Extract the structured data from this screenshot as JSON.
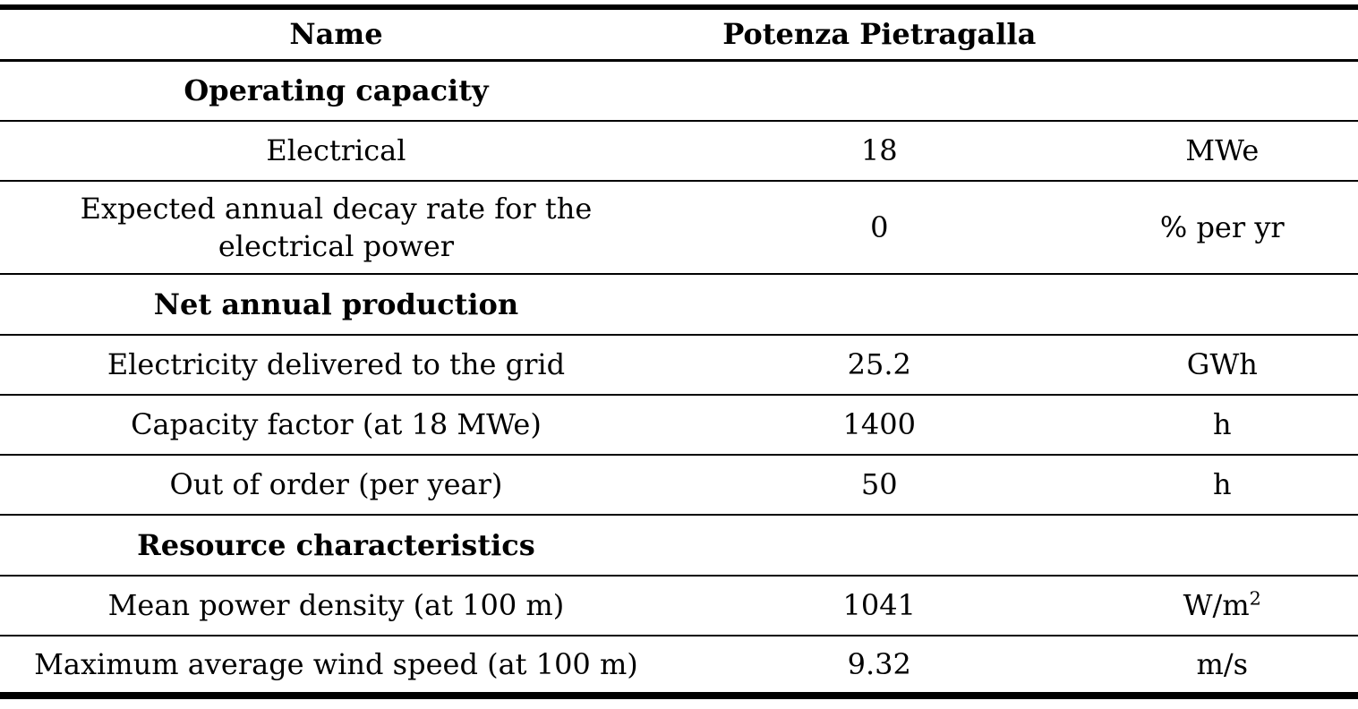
{
  "meta": {
    "background_color": "#ffffff",
    "text_color": "#000000",
    "rule_color": "#000000"
  },
  "table": {
    "header": {
      "name": "Name",
      "site": "Potenza Pietragalla"
    },
    "sections": [
      {
        "title": "Operating capacity",
        "rows": [
          {
            "label": "Electrical",
            "value": "18",
            "unit": "MWe"
          },
          {
            "label_lines": [
              "Expected annual decay rate for the",
              "electrical power"
            ],
            "value": "0",
            "unit": "% per yr"
          }
        ]
      },
      {
        "title": "Net annual production",
        "rows": [
          {
            "label": "Electricity delivered to the grid",
            "value": "25.2",
            "unit": "GWh"
          },
          {
            "label": "Capacity factor (at 18 MWe)",
            "value": "1400",
            "unit": "h"
          },
          {
            "label": "Out of order (per year)",
            "value": "50",
            "unit": "h"
          }
        ]
      },
      {
        "title": "Resource characteristics",
        "rows": [
          {
            "label": "Mean power density (at 100 m)",
            "value": "1041",
            "unit": "W/m",
            "unit_sup": "2"
          },
          {
            "label": "Maximum average wind speed (at 100 m)",
            "value": "9.32",
            "unit": "m/s"
          }
        ]
      }
    ]
  }
}
